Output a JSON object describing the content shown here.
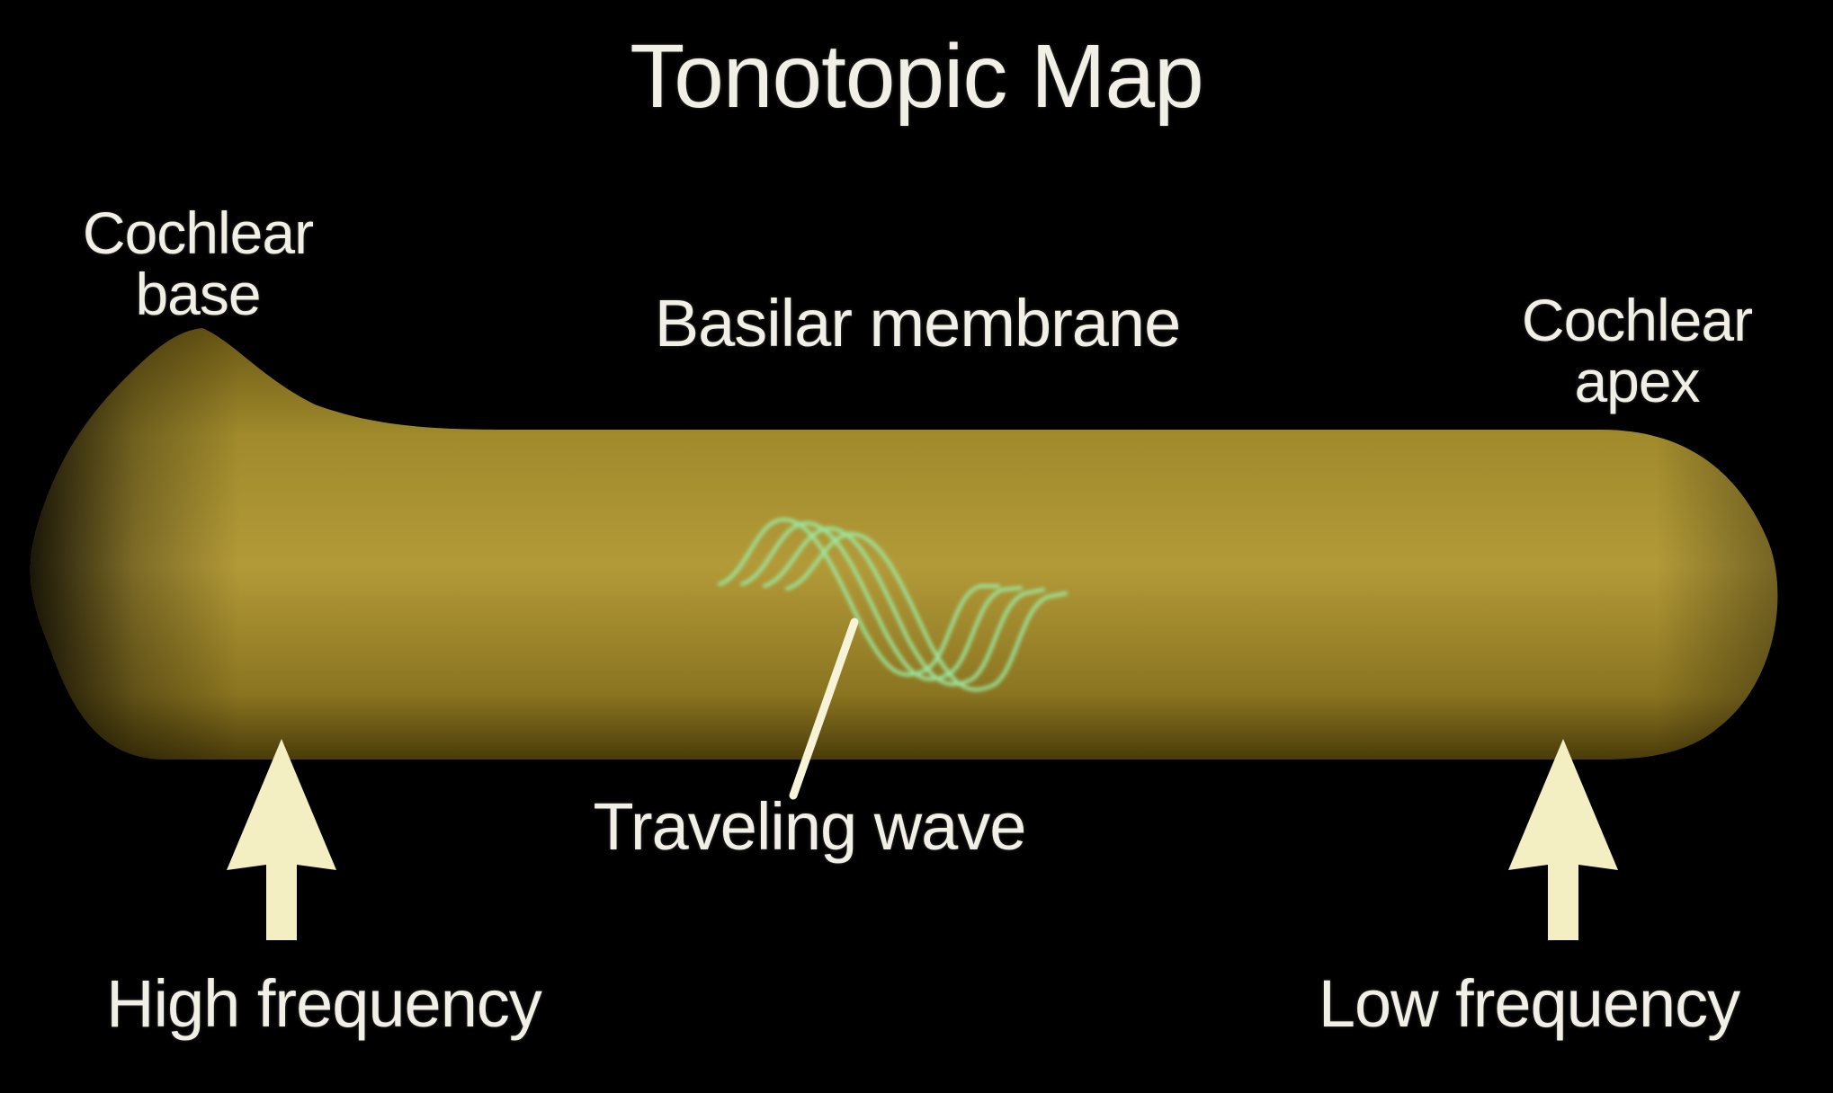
{
  "title": "Tonotopic Map",
  "labels": {
    "cochlear_base": "Cochlear base",
    "cochlear_apex": "Cochlear apex",
    "basilar_membrane": "Basilar membrane",
    "traveling_wave": "Traveling wave",
    "high_frequency": "High frequency",
    "low_frequency": "Low frequency"
  },
  "colors": {
    "background": "#000000",
    "membrane": "#a8902e",
    "membrane_shadow": "#5a4a10",
    "wave": "#9be8a0",
    "arrow": "#f3efc2",
    "text": "#f2f0e6"
  }
}
